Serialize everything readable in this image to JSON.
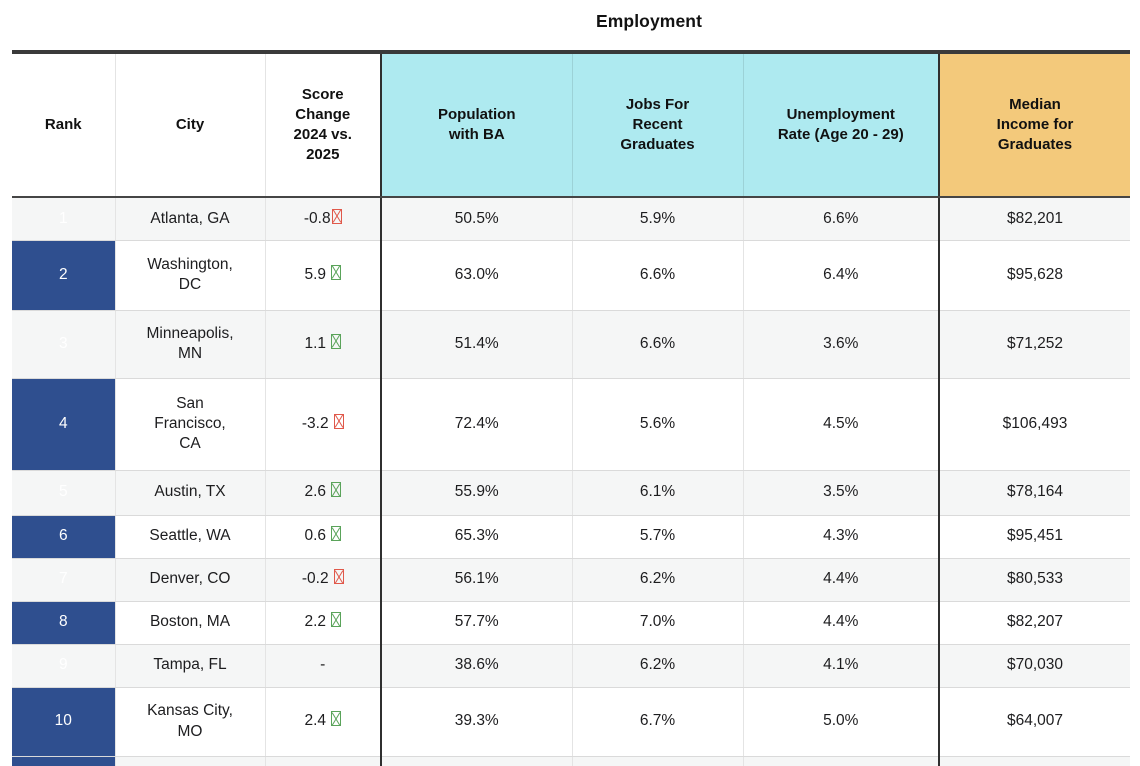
{
  "chart_data": {
    "type": "table",
    "title": "Employment",
    "columns": [
      "Rank",
      "City",
      "Score Change 2024 vs. 2025",
      "Population with BA",
      "Jobs For Recent Graduates",
      "Unemployment Rate (Age 20 - 29)",
      "Median Income for Graduates"
    ],
    "header_groups": {
      "employment_group_label": "Employment",
      "employment_group_columns": [
        "Population with BA",
        "Jobs For Recent Graduates",
        "Unemployment Rate (Age 20 - 29)"
      ],
      "income_group_columns": [
        "Median Income for Graduates"
      ]
    },
    "rows": [
      {
        "rank": "1",
        "city": "Atlanta, GA",
        "score_change": "-0.8",
        "trend": "down",
        "score_spaced": false,
        "pop_ba": "50.5%",
        "jobs": "5.9%",
        "unemployment": "6.6%",
        "income": "$82,201"
      },
      {
        "rank": "2",
        "city": "Washington, DC",
        "score_change": "5.9",
        "trend": "up",
        "score_spaced": true,
        "pop_ba": "63.0%",
        "jobs": "6.6%",
        "unemployment": "6.4%",
        "income": "$95,628"
      },
      {
        "rank": "3",
        "city": "Minneapolis, MN",
        "score_change": "1.1",
        "trend": "up",
        "score_spaced": true,
        "pop_ba": "51.4%",
        "jobs": "6.6%",
        "unemployment": "3.6%",
        "income": "$71,252"
      },
      {
        "rank": "4",
        "city": "San Francisco, CA",
        "score_change": "-3.2",
        "trend": "down",
        "score_spaced": true,
        "pop_ba": "72.4%",
        "jobs": "5.6%",
        "unemployment": "4.5%",
        "income": "$106,493"
      },
      {
        "rank": "5",
        "city": "Austin, TX",
        "score_change": "2.6",
        "trend": "up",
        "score_spaced": true,
        "pop_ba": "55.9%",
        "jobs": "6.1%",
        "unemployment": "3.5%",
        "income": "$78,164"
      },
      {
        "rank": "6",
        "city": "Seattle, WA",
        "score_change": "0.6",
        "trend": "up",
        "score_spaced": true,
        "pop_ba": "65.3%",
        "jobs": "5.7%",
        "unemployment": "4.3%",
        "income": "$95,451"
      },
      {
        "rank": "7",
        "city": "Denver, CO",
        "score_change": "-0.2",
        "trend": "down",
        "score_spaced": true,
        "pop_ba": "56.1%",
        "jobs": "6.2%",
        "unemployment": "4.4%",
        "income": "$80,533"
      },
      {
        "rank": "8",
        "city": "Boston, MA",
        "score_change": "2.2",
        "trend": "up",
        "score_spaced": true,
        "pop_ba": "57.7%",
        "jobs": "7.0%",
        "unemployment": "4.4%",
        "income": "$82,207"
      },
      {
        "rank": "9",
        "city": "Tampa, FL",
        "score_change": "-",
        "trend": "none",
        "score_spaced": true,
        "pop_ba": "38.6%",
        "jobs": "6.2%",
        "unemployment": "4.1%",
        "income": "$70,030"
      },
      {
        "rank": "10",
        "city": "Kansas City, MO",
        "score_change": "2.4",
        "trend": "up",
        "score_spaced": true,
        "pop_ba": "39.3%",
        "jobs": "6.7%",
        "unemployment": "5.0%",
        "income": "$64,007"
      }
    ]
  },
  "colors": {
    "rank_column_bg": "#2f4f8f",
    "employment_header_bg": "#aeeaf0",
    "income_header_bg": "#f3c97b",
    "trend_up": "#5aa35a",
    "trend_down": "#e0584a",
    "row_stripe": "#f5f6f6",
    "top_border": "#3a3a3a"
  },
  "icons": {
    "trend_marker_style": "missing-glyph-tofu-box"
  }
}
